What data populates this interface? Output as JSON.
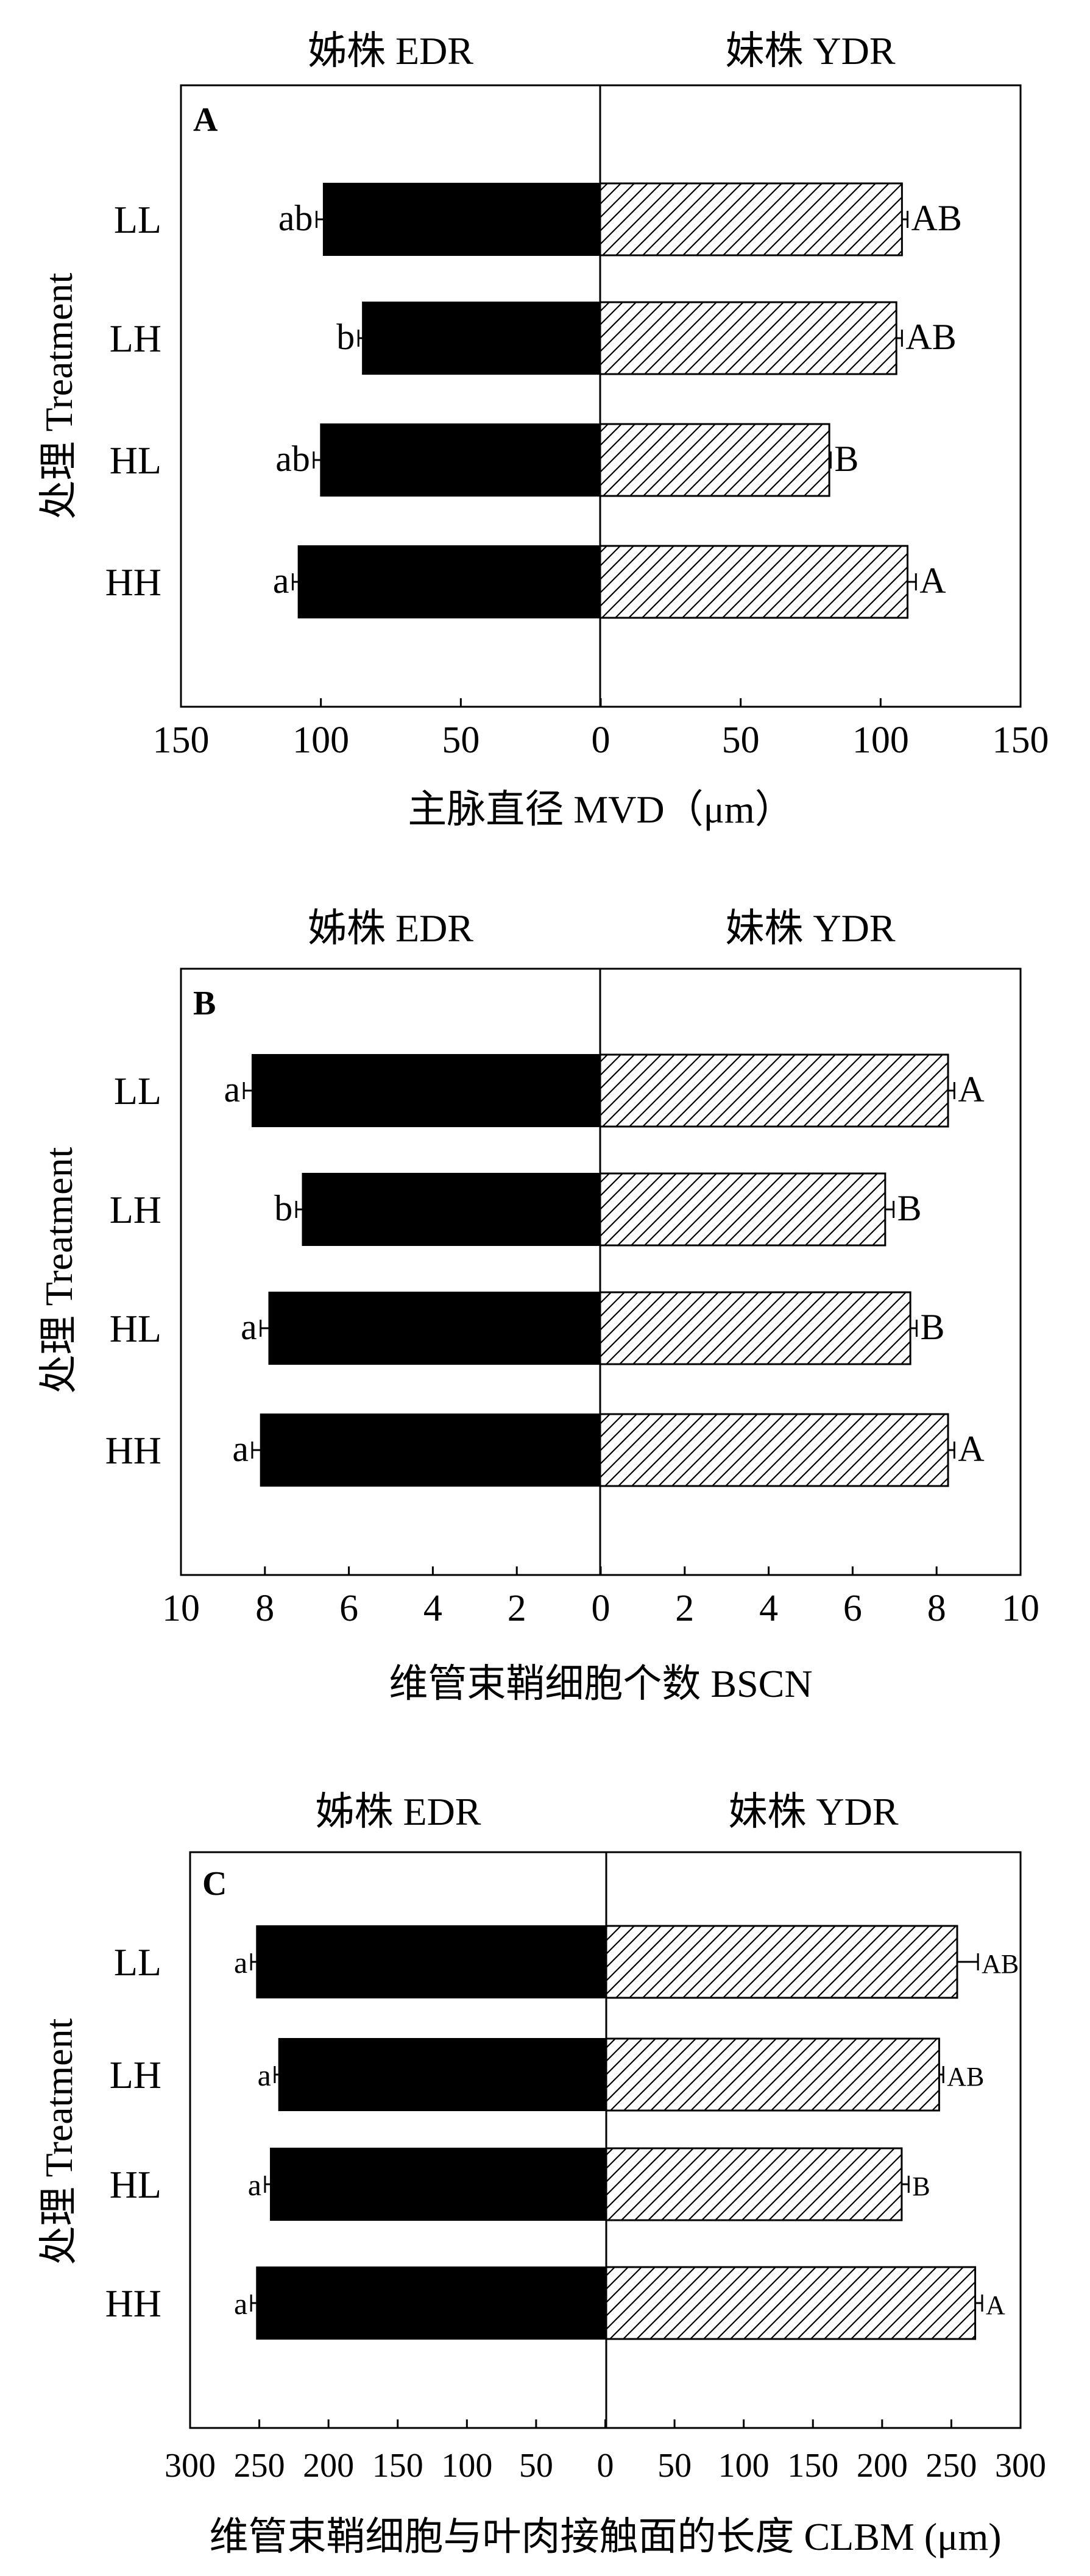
{
  "chart_data": [
    {
      "type": "bar",
      "orientation": "horizontal",
      "panel_label": "A",
      "categories": [
        "LL",
        "LH",
        "HL",
        "HH"
      ],
      "y_axis_label": "处理 Treatment",
      "x_axis_label": "主脉直径  MVD（μm）",
      "xlim": [
        0,
        150
      ],
      "ticks": [
        "150",
        "100",
        "50",
        "0",
        "50",
        "100",
        "150"
      ],
      "series": [
        {
          "name": "姊株 EDR",
          "side": "left",
          "fill": "solid",
          "color": "#000000",
          "values": [
            99,
            85,
            100,
            108
          ],
          "errors": [
            2.5,
            1.5,
            2.5,
            2
          ],
          "letters": [
            "ab",
            "b",
            "ab",
            "a"
          ]
        },
        {
          "name": "妹株 YDR",
          "side": "right",
          "fill": "hatch",
          "color": "#000000",
          "values": [
            108,
            106,
            82,
            110
          ],
          "errors": [
            2,
            2,
            0.5,
            3
          ],
          "letters": [
            "AB",
            "AB",
            "B",
            "A"
          ]
        }
      ]
    },
    {
      "type": "bar",
      "orientation": "horizontal",
      "panel_label": "B",
      "categories": [
        "LL",
        "LH",
        "HL",
        "HH"
      ],
      "y_axis_label": "处理 Treatment",
      "x_axis_label": "维管束鞘细胞个数  BSCN",
      "xlim": [
        0,
        10
      ],
      "ticks": [
        "10",
        "8",
        "6",
        "4",
        "2",
        "0",
        "2",
        "4",
        "6",
        "8",
        "10"
      ],
      "series": [
        {
          "name": "姊株 EDR",
          "side": "left",
          "fill": "solid",
          "color": "#000000",
          "values": [
            8.3,
            7.1,
            7.9,
            8.1
          ],
          "errors": [
            0.2,
            0.15,
            0.2,
            0.2
          ],
          "letters": [
            "a",
            "b",
            "a",
            "a"
          ]
        },
        {
          "name": "妹株 YDR",
          "side": "right",
          "fill": "hatch",
          "color": "#000000",
          "values": [
            8.3,
            6.8,
            7.4,
            8.3
          ],
          "errors": [
            0.15,
            0.2,
            0.15,
            0.15
          ],
          "letters": [
            "A",
            "B",
            "B",
            "A"
          ]
        }
      ]
    },
    {
      "type": "bar",
      "orientation": "horizontal",
      "panel_label": "C",
      "categories": [
        "LL",
        "LH",
        "HL",
        "HH"
      ],
      "y_axis_label": "处理 Treatment",
      "x_axis_label": "维管束鞘细胞与叶肉接触面的长度 CLBM (μm)",
      "xlim": [
        0,
        300
      ],
      "ticks": [
        "300",
        "250",
        "200",
        "150",
        "100",
        "50",
        "0",
        "50",
        "100",
        "150",
        "200",
        "250",
        "300"
      ],
      "series": [
        {
          "name": "姊株 EDR",
          "side": "left",
          "fill": "solid",
          "color": "#000000",
          "values": [
            252,
            236,
            242,
            252
          ],
          "errors": [
            4,
            3,
            4,
            4
          ],
          "letters": [
            "a",
            "a",
            "a",
            "a"
          ]
        },
        {
          "name": "妹株 YDR",
          "side": "right",
          "fill": "hatch",
          "color": "#000000",
          "values": [
            253,
            240,
            213,
            266
          ],
          "errors": [
            15,
            3,
            5,
            5
          ],
          "letters": [
            "AB",
            "AB",
            "B",
            "A"
          ]
        }
      ]
    }
  ]
}
